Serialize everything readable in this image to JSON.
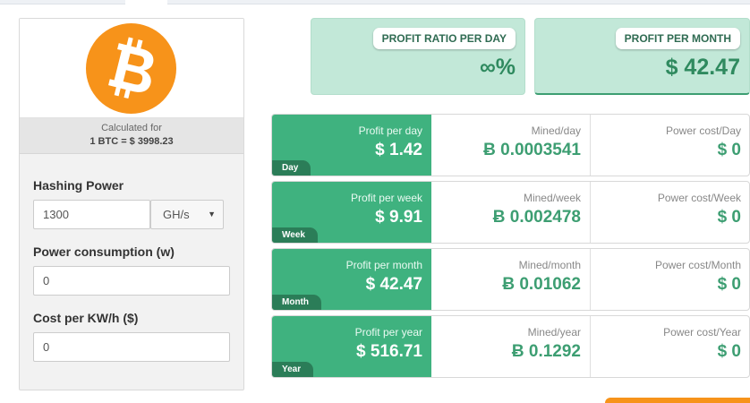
{
  "colors": {
    "bitcoin_orange": "#f7931a",
    "profit_green": "#3fb27f",
    "dark_green": "#2b7d58",
    "value_green": "#3d9e72",
    "summary_bg": "#c2e8d8"
  },
  "logo": {
    "icon": "bitcoin-logo-icon"
  },
  "calculated": {
    "label": "Calculated for",
    "rate": "1 BTC = $ 3998.23"
  },
  "form": {
    "hashing_label": "Hashing Power",
    "hashing_value": "1300",
    "hashing_unit": "GH/s",
    "power_label": "Power consumption (w)",
    "power_value": "0",
    "cost_label": "Cost per KW/h ($)",
    "cost_value": "0"
  },
  "summary": {
    "ratio": {
      "label": "PROFIT RATIO PER DAY",
      "value": "∞%"
    },
    "month": {
      "label": "PROFIT PER MONTH",
      "value": "$ 42.47"
    }
  },
  "rows": [
    {
      "tag": "Day",
      "profit_label": "Profit per day",
      "profit_value": "$ 1.42",
      "mined_label": "Mined/day",
      "mined_value": "Ƀ 0.0003541",
      "power_label": "Power cost/Day",
      "power_value": "$ 0"
    },
    {
      "tag": "Week",
      "profit_label": "Profit per week",
      "profit_value": "$ 9.91",
      "mined_label": "Mined/week",
      "mined_value": "Ƀ 0.002478",
      "power_label": "Power cost/Week",
      "power_value": "$ 0"
    },
    {
      "tag": "Month",
      "profit_label": "Profit per month",
      "profit_value": "$ 42.47",
      "mined_label": "Mined/month",
      "mined_value": "Ƀ 0.01062",
      "power_label": "Power cost/Month",
      "power_value": "$ 0"
    },
    {
      "tag": "Year",
      "profit_label": "Profit per year",
      "profit_value": "$ 516.71",
      "mined_label": "Mined/year",
      "mined_value": "Ƀ 0.1292",
      "power_label": "Power cost/Year",
      "power_value": "$ 0"
    }
  ]
}
